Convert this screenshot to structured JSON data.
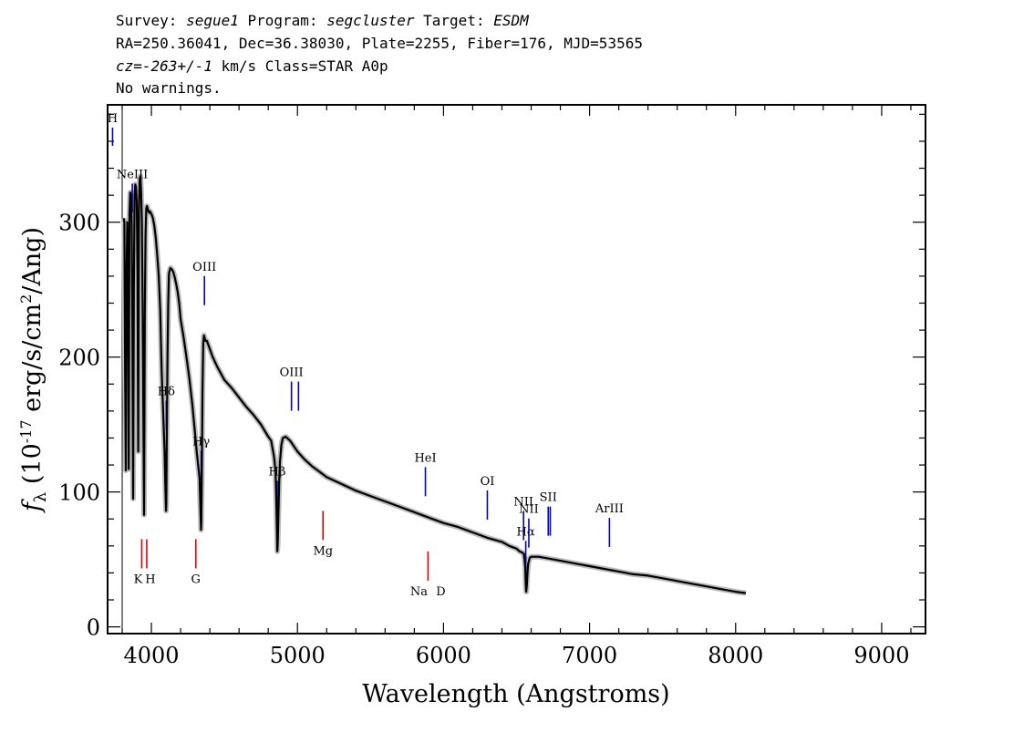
{
  "header": {
    "line1": {
      "k1": "Survey: ",
      "v1": "segue1",
      "k2": " Program: ",
      "v2": "segcluster",
      "k3": " Target: ",
      "v3": "ESDM"
    },
    "line2": "RA=250.36041, Dec=36.38030, Plate=2255, Fiber=176, MJD=53565",
    "line3": {
      "k1": "cz=",
      "v1": "-263+/-1",
      "k2": " km/s Class=STAR A0p"
    },
    "line4": "No warnings."
  },
  "chart_data": {
    "type": "line",
    "xlabel": "Wavelength (Angstroms)",
    "ylabel": "f_λ (10^-17 erg/s/cm^2/Ang)",
    "ylabel_parts": {
      "f": "f",
      "sub": "λ",
      "pre": " (10",
      "exp1": "-17",
      "mid": " erg/s/cm",
      "exp2": "2",
      "post": "/Ang)"
    },
    "xlim": [
      3700,
      9300
    ],
    "ylim": [
      -5,
      387
    ],
    "x_ticks": [
      "4000",
      "5000",
      "6000",
      "7000",
      "8000",
      "9000"
    ],
    "y_ticks": [
      "0",
      "100",
      "200",
      "300"
    ],
    "series": [
      {
        "x": [
          3810,
          3815,
          3820,
          3825,
          3830,
          3835,
          3840,
          3845,
          3850,
          3855,
          3860,
          3865,
          3870,
          3875,
          3880,
          3885,
          3890,
          3895,
          3900,
          3905,
          3910,
          3915,
          3920,
          3925,
          3930,
          3935,
          3940,
          3945,
          3950,
          3955,
          3960,
          3965,
          3970,
          3975,
          3980,
          3985,
          3990,
          3995,
          4000,
          4010,
          4020,
          4030,
          4040,
          4050,
          4060,
          4070,
          4080,
          4090,
          4095,
          4100,
          4102,
          4105,
          4110,
          4115,
          4120,
          4130,
          4140,
          4150,
          4160,
          4170,
          4180,
          4190,
          4200,
          4220,
          4240,
          4260,
          4280,
          4300,
          4310,
          4320,
          4330,
          4335,
          4340,
          4342,
          4345,
          4350,
          4355,
          4360,
          4370,
          4380,
          4400,
          4420,
          4450,
          4500,
          4550,
          4600,
          4650,
          4700,
          4750,
          4800,
          4820,
          4830,
          4840,
          4850,
          4855,
          4860,
          4862,
          4865,
          4870,
          4875,
          4880,
          4890,
          4900,
          4920,
          4950,
          5000,
          5050,
          5100,
          5150,
          5200,
          5300,
          5400,
          5500,
          5600,
          5700,
          5800,
          5900,
          6000,
          6100,
          6200,
          6300,
          6400,
          6450,
          6500,
          6520,
          6540,
          6550,
          6555,
          6560,
          6563,
          6566,
          6570,
          6575,
          6580,
          6590,
          6600,
          6650,
          6700,
          6800,
          6900,
          7000,
          7100,
          7200,
          7300,
          7400,
          7500,
          7600,
          7700,
          7800,
          7900,
          8000,
          8070
        ],
        "y": [
          303,
          300,
          190,
          116,
          265,
          300,
          260,
          117,
          306,
          322,
          320,
          300,
          220,
          95,
          250,
          320,
          328,
          326,
          315,
          260,
          130,
          310,
          332,
          334,
          322,
          300,
          240,
          160,
          83,
          230,
          290,
          310,
          312,
          310,
          308,
          307,
          308,
          307,
          306,
          303,
          297,
          288,
          275,
          260,
          235,
          190,
          160,
          130,
          105,
          86,
          92,
          140,
          200,
          240,
          262,
          266,
          265,
          263,
          259,
          254,
          248,
          240,
          228,
          215,
          200,
          184,
          165,
          142,
          130,
          120,
          110,
          90,
          72,
          78,
          110,
          175,
          210,
          216,
          212,
          212,
          206,
          200,
          193,
          183,
          177,
          170,
          163,
          157,
          150,
          141,
          138,
          132,
          126,
          115,
          95,
          70,
          56,
          62,
          85,
          108,
          122,
          135,
          140,
          141,
          138,
          130,
          124,
          119,
          115,
          111,
          106,
          101,
          97,
          93,
          89,
          85,
          81,
          77,
          74,
          70,
          66,
          63,
          60,
          58,
          56,
          55,
          54,
          50,
          44,
          32,
          26,
          30,
          40,
          47,
          51,
          52,
          52,
          51,
          49,
          47,
          45,
          43,
          41,
          39,
          38,
          36,
          34,
          32,
          30,
          28,
          26,
          25
        ]
      }
    ],
    "emission_lines": [
      {
        "label": "H",
        "wave": 3734
      },
      {
        "label": "NeIII",
        "wave": 3869
      },
      {
        "label": "Hδ",
        "wave": 4102
      },
      {
        "label": "Hγ",
        "wave": 4341
      },
      {
        "label": "OIII",
        "wave": 4363
      },
      {
        "label": "Hβ",
        "wave": 4861
      },
      {
        "label": "OIII",
        "wave": 4959
      },
      {
        "label": "",
        "wave": 5007
      },
      {
        "label": "HeI",
        "wave": 5876
      },
      {
        "label": "OI",
        "wave": 6300
      },
      {
        "label": "NII",
        "wave": 6548
      },
      {
        "label": "Hα",
        "wave": 6563
      },
      {
        "label": "NII",
        "wave": 6584
      },
      {
        "label": "SII",
        "wave": 6717
      },
      {
        "label": "",
        "wave": 6731
      },
      {
        "label": "ArIII",
        "wave": 7136
      }
    ],
    "absorption_lines": [
      {
        "label": "K",
        "wave": 3934
      },
      {
        "label": "H",
        "wave": 3968
      },
      {
        "label": "G",
        "wave": 4304
      },
      {
        "label": "Mg",
        "wave": 5175
      },
      {
        "label": "Na",
        "wave": 5894
      },
      {
        "label": "D",
        "wave": 5894
      }
    ],
    "colors": {
      "spectrum": "#000000",
      "error_band": "#bbbbbb",
      "emission": "#0000cc",
      "absorption": "#dd0000"
    }
  }
}
